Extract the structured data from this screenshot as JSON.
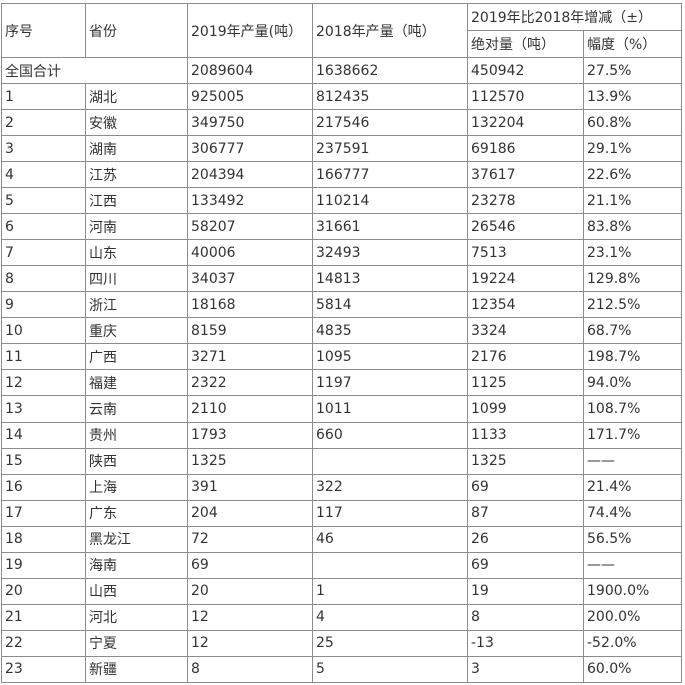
{
  "header": {
    "seq": "序号",
    "province": "省份",
    "y2019": "2019年产量(吨）",
    "y2018": "2018年产量（吨）",
    "change": "2019年比2018年增减（±）",
    "abs": "绝对量（吨）",
    "pct": "幅度（%）"
  },
  "total": {
    "label": "全国合计",
    "y2019": "2089604",
    "y2018": "1638662",
    "abs": "450942",
    "pct": "27.5%"
  },
  "rows": [
    [
      "1",
      "湖北",
      "925005",
      "812435",
      "112570",
      "13.9%"
    ],
    [
      "2",
      "安徽",
      "349750",
      "217546",
      "132204",
      "60.8%"
    ],
    [
      "3",
      "湖南",
      "306777",
      "237591",
      "69186",
      "29.1%"
    ],
    [
      "4",
      "江苏",
      "204394",
      "166777",
      "37617",
      "22.6%"
    ],
    [
      "5",
      "江西",
      "133492",
      "110214",
      "23278",
      "21.1%"
    ],
    [
      "6",
      "河南",
      "58207",
      "31661",
      "26546",
      "83.8%"
    ],
    [
      "7",
      "山东",
      "40006",
      "32493",
      "7513",
      "23.1%"
    ],
    [
      "8",
      "四川",
      "34037",
      "14813",
      "19224",
      "129.8%"
    ],
    [
      "9",
      "浙江",
      "18168",
      "5814",
      "12354",
      "212.5%"
    ],
    [
      "10",
      "重庆",
      "8159",
      "4835",
      "3324",
      "68.7%"
    ],
    [
      "11",
      "广西",
      "3271",
      "1095",
      "2176",
      "198.7%"
    ],
    [
      "12",
      "福建",
      "2322",
      "1197",
      "1125",
      "94.0%"
    ],
    [
      "13",
      "云南",
      "2110",
      "1011",
      "1099",
      "108.7%"
    ],
    [
      "14",
      "贵州",
      "1793",
      "660",
      "1133",
      "171.7%"
    ],
    [
      "15",
      "陕西",
      "1325",
      "",
      "1325",
      "——"
    ],
    [
      "16",
      "上海",
      "391",
      "322",
      "69",
      "21.4%"
    ],
    [
      "17",
      "广东",
      "204",
      "117",
      "87",
      "74.4%"
    ],
    [
      "18",
      "黑龙江",
      "72",
      "46",
      "26",
      "56.5%"
    ],
    [
      "19",
      "海南",
      "69",
      "",
      "69",
      "——"
    ],
    [
      "20",
      "山西",
      "20",
      "1",
      "19",
      "1900.0%"
    ],
    [
      "21",
      "河北",
      "12",
      "4",
      "8",
      "200.0%"
    ],
    [
      "22",
      "宁夏",
      "12",
      "25",
      "-13",
      "-52.0%"
    ],
    [
      "23",
      "新疆",
      "8",
      "5",
      "3",
      "60.0%"
    ]
  ]
}
